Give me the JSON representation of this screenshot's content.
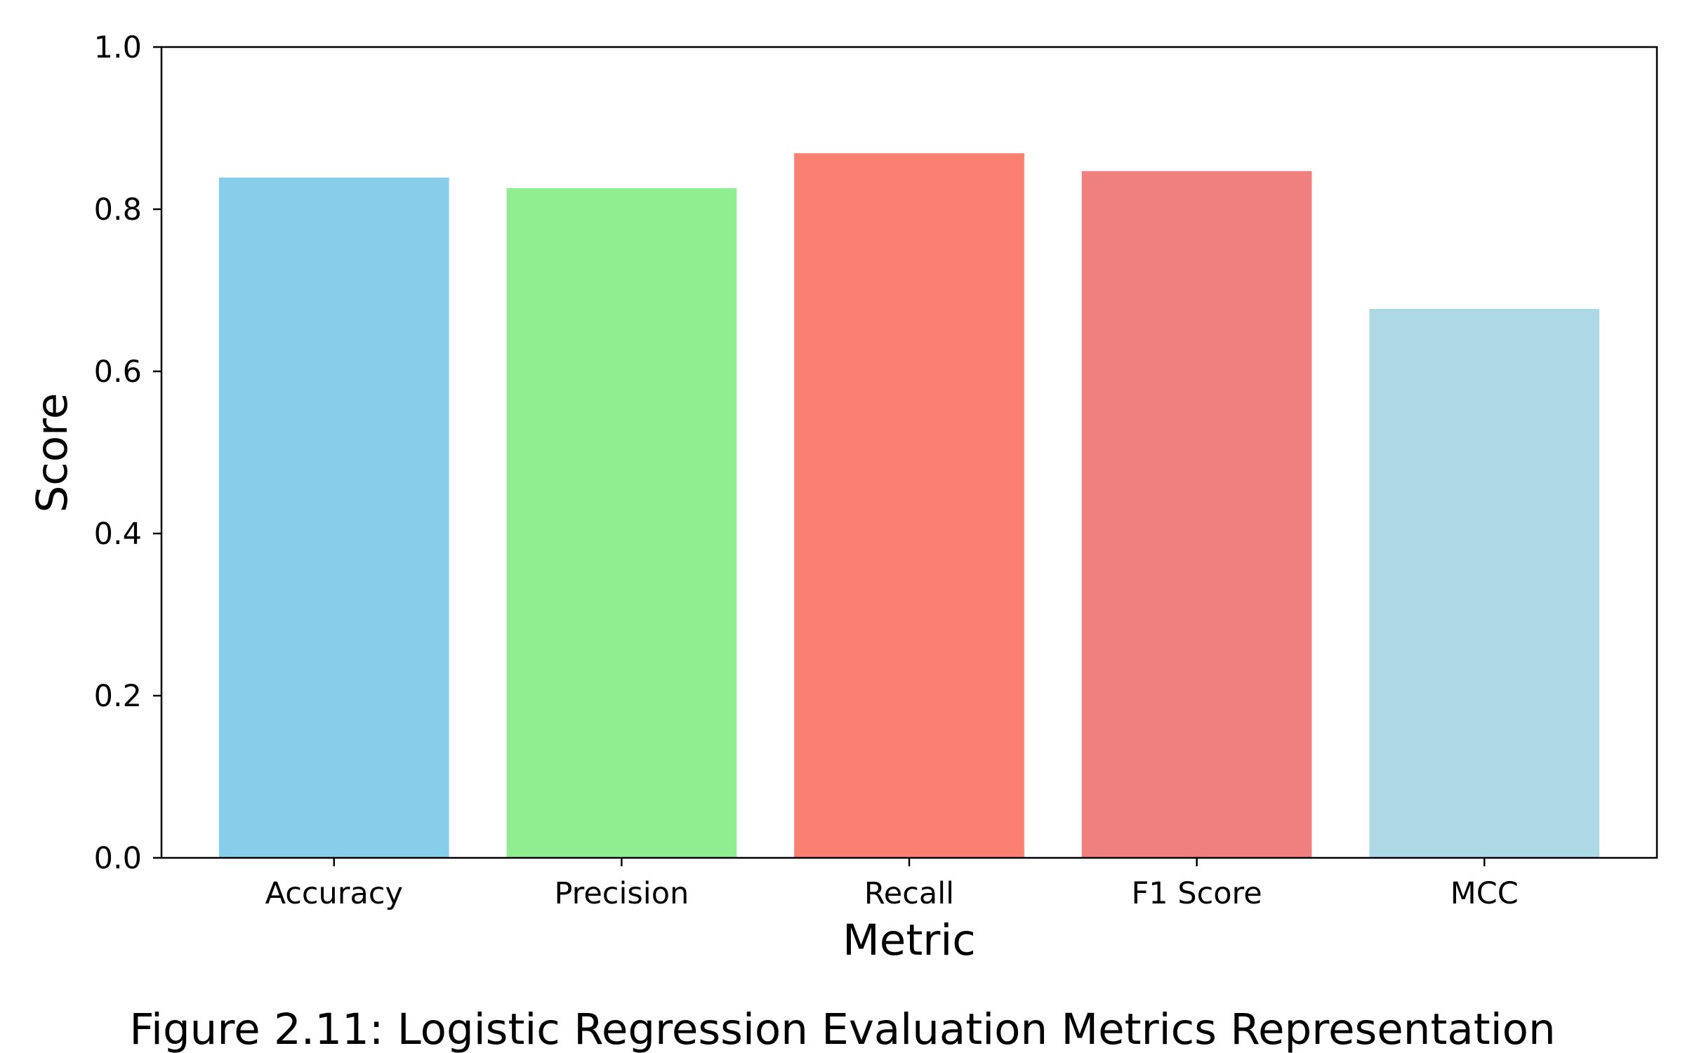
{
  "chart_data": {
    "type": "bar",
    "categories": [
      "Accuracy",
      "Precision",
      "Recall",
      "F1 Score",
      "MCC"
    ],
    "values": [
      0.839,
      0.826,
      0.869,
      0.847,
      0.677
    ],
    "colors": [
      "#87ceeb",
      "#90ee90",
      "#fa8072",
      "#f08080",
      "#add8e6"
    ],
    "xlabel": "Metric",
    "ylabel": "Score",
    "ylim": [
      0,
      1.0
    ],
    "yticks": [
      "0.0",
      "0.2",
      "0.4",
      "0.6",
      "0.8",
      "1.0"
    ],
    "grid": false,
    "caption": "Figure 2.11: Logistic Regression Evaluation Metrics Representation"
  }
}
